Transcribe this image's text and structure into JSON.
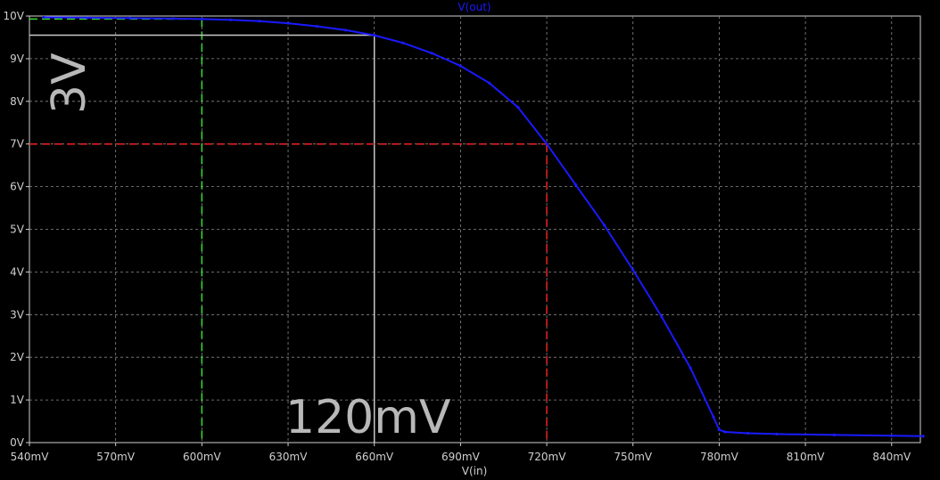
{
  "chart_data": {
    "type": "line",
    "title": "V(out)",
    "xlabel": "V(in)",
    "ylabel": "",
    "xlim": [
      540,
      850
    ],
    "ylim": [
      0,
      10
    ],
    "grid": true,
    "x_ticks": [
      "540mV",
      "570mV",
      "600mV",
      "630mV",
      "660mV",
      "690mV",
      "720mV",
      "750mV",
      "780mV",
      "810mV",
      "840mV"
    ],
    "y_ticks": [
      "0V",
      "1V",
      "2V",
      "3V",
      "4V",
      "5V",
      "6V",
      "7V",
      "8V",
      "9V",
      "10V"
    ],
    "series": [
      {
        "name": "V(out)",
        "color": "#1a1aff",
        "x": [
          545,
          560,
          575,
          590,
          600,
          610,
          620,
          630,
          640,
          650,
          660,
          670,
          680,
          690,
          700,
          710,
          720,
          730,
          740,
          750,
          760,
          770,
          778,
          780,
          782,
          790,
          800,
          820,
          840,
          851
        ],
        "y": [
          9.97,
          9.96,
          9.95,
          9.94,
          9.93,
          9.91,
          9.88,
          9.83,
          9.76,
          9.67,
          9.55,
          9.37,
          9.13,
          8.83,
          8.43,
          7.86,
          7.0,
          6.05,
          5.1,
          4.05,
          2.95,
          1.75,
          0.6,
          0.3,
          0.25,
          0.22,
          0.2,
          0.18,
          0.16,
          0.15
        ]
      }
    ],
    "annotations": [
      {
        "label": "3V",
        "color": "#b8b8b8"
      },
      {
        "label": "120mV",
        "color": "#b8b8b8"
      }
    ],
    "markers": [
      {
        "kind": "hline",
        "y": 9.93,
        "x_end": 600,
        "color": "#33dd33",
        "dashed": true
      },
      {
        "kind": "vline",
        "x": 600,
        "y_end": 9.93,
        "color": "#33dd33",
        "dashed": true
      },
      {
        "kind": "hline",
        "y": 9.55,
        "x_end": 660,
        "color": "#c8c8c8",
        "dashed": false
      },
      {
        "kind": "vline",
        "x": 660,
        "y_end": 9.55,
        "color": "#c8c8c8",
        "dashed": false
      },
      {
        "kind": "hline",
        "y": 7.0,
        "x_end": 720,
        "color": "#ee2222",
        "dashed": true
      },
      {
        "kind": "vline",
        "x": 720,
        "y_end": 7.0,
        "color": "#ee2222",
        "dashed": true
      }
    ]
  }
}
